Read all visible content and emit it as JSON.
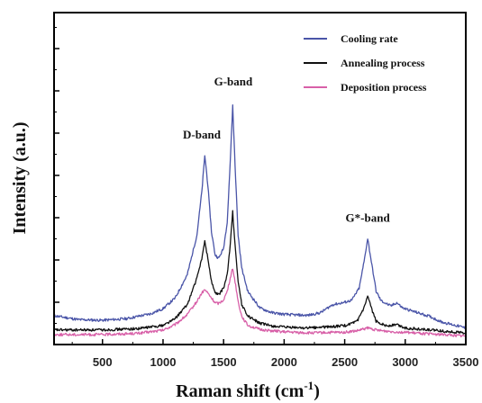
{
  "chart_data": {
    "type": "line",
    "xlabel": "Raman shift (cm",
    "xlabel_sup": "-1",
    "xlabel_close": ")",
    "ylabel": "Intensity (a.u.)",
    "xlim": [
      100,
      3500
    ],
    "ylim": [
      0,
      100
    ],
    "x_ticks": [
      500,
      1000,
      1500,
      2000,
      2500,
      3000,
      3500
    ],
    "y_ticks_labeled": false,
    "legend_position": "top-right",
    "series": [
      {
        "name": "Cooling rate",
        "color": "#4a55a8",
        "points": [
          [
            100,
            8.7
          ],
          [
            300,
            7.5
          ],
          [
            500,
            7.3
          ],
          [
            700,
            7.8
          ],
          [
            900,
            9.3
          ],
          [
            1000,
            10.8
          ],
          [
            1100,
            14
          ],
          [
            1200,
            21
          ],
          [
            1280,
            33
          ],
          [
            1320,
            46
          ],
          [
            1345,
            57
          ],
          [
            1370,
            48
          ],
          [
            1400,
            34
          ],
          [
            1430,
            27
          ],
          [
            1460,
            26
          ],
          [
            1500,
            29
          ],
          [
            1530,
            37
          ],
          [
            1555,
            55
          ],
          [
            1575,
            72
          ],
          [
            1595,
            54
          ],
          [
            1620,
            33
          ],
          [
            1650,
            23
          ],
          [
            1700,
            16
          ],
          [
            1800,
            11
          ],
          [
            1900,
            9.6
          ],
          [
            2000,
            9.1
          ],
          [
            2100,
            8.9
          ],
          [
            2200,
            8.8
          ],
          [
            2300,
            9.6
          ],
          [
            2400,
            12
          ],
          [
            2500,
            12.7
          ],
          [
            2560,
            13.4
          ],
          [
            2620,
            17
          ],
          [
            2660,
            25
          ],
          [
            2690,
            32
          ],
          [
            2720,
            25
          ],
          [
            2760,
            16
          ],
          [
            2800,
            13.2
          ],
          [
            2880,
            11.6
          ],
          [
            2930,
            12.6
          ],
          [
            2980,
            11
          ],
          [
            3100,
            9.6
          ],
          [
            3200,
            8.5
          ],
          [
            3300,
            6.8
          ],
          [
            3500,
            5
          ]
        ]
      },
      {
        "name": "Annealing process",
        "color": "#111111",
        "points": [
          [
            100,
            4.4
          ],
          [
            500,
            4.4
          ],
          [
            800,
            4.8
          ],
          [
            1000,
            5.8
          ],
          [
            1100,
            7.8
          ],
          [
            1200,
            12
          ],
          [
            1280,
            20
          ],
          [
            1320,
            26
          ],
          [
            1345,
            31
          ],
          [
            1370,
            26
          ],
          [
            1400,
            19
          ],
          [
            1430,
            15.5
          ],
          [
            1460,
            15
          ],
          [
            1500,
            17
          ],
          [
            1530,
            21
          ],
          [
            1555,
            30
          ],
          [
            1575,
            40
          ],
          [
            1595,
            30
          ],
          [
            1620,
            19
          ],
          [
            1650,
            12
          ],
          [
            1700,
            8.6
          ],
          [
            1800,
            6.4
          ],
          [
            1900,
            5.6
          ],
          [
            2000,
            5.2
          ],
          [
            2200,
            5
          ],
          [
            2400,
            5.4
          ],
          [
            2500,
            5.7
          ],
          [
            2600,
            6.8
          ],
          [
            2660,
            11
          ],
          [
            2690,
            14.5
          ],
          [
            2720,
            11
          ],
          [
            2760,
            7
          ],
          [
            2850,
            5.6
          ],
          [
            2930,
            6
          ],
          [
            3000,
            5
          ],
          [
            3200,
            4.4
          ],
          [
            3500,
            3.5
          ]
        ]
      },
      {
        "name": "Deposition process",
        "color": "#d860a8",
        "points": [
          [
            100,
            3
          ],
          [
            500,
            3
          ],
          [
            800,
            3.4
          ],
          [
            1000,
            4.3
          ],
          [
            1100,
            6
          ],
          [
            1200,
            9
          ],
          [
            1280,
            13
          ],
          [
            1320,
            15.5
          ],
          [
            1345,
            16.5
          ],
          [
            1370,
            15.5
          ],
          [
            1400,
            14
          ],
          [
            1430,
            12.6
          ],
          [
            1460,
            12.4
          ],
          [
            1500,
            13.5
          ],
          [
            1530,
            16
          ],
          [
            1555,
            20
          ],
          [
            1575,
            23
          ],
          [
            1595,
            19
          ],
          [
            1620,
            13
          ],
          [
            1650,
            8.5
          ],
          [
            1700,
            5.8
          ],
          [
            1800,
            4.5
          ],
          [
            2000,
            3.8
          ],
          [
            2200,
            3.5
          ],
          [
            2500,
            3.7
          ],
          [
            2600,
            4.1
          ],
          [
            2690,
            5
          ],
          [
            2780,
            4.2
          ],
          [
            2900,
            3.9
          ],
          [
            3100,
            3.4
          ],
          [
            3500,
            2.6
          ]
        ]
      }
    ],
    "annotations": [
      {
        "text": "D-band",
        "x": 1320,
        "y": 62
      },
      {
        "text": "G-band",
        "x": 1580,
        "y": 78
      },
      {
        "text": "G*-band",
        "x": 2690,
        "y": 37
      }
    ]
  }
}
